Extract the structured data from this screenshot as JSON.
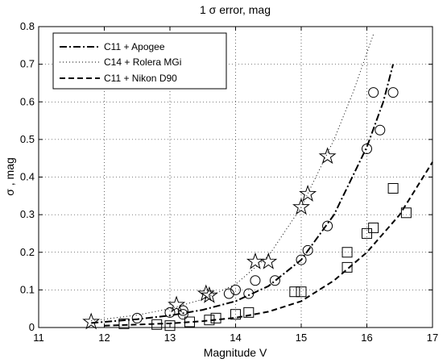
{
  "chart_data": {
    "type": "scatter",
    "title": "1 σ error,  mag",
    "xlabel": "Magnitude  V",
    "ylabel": "σ ,  mag",
    "xlim": [
      11,
      17
    ],
    "ylim": [
      0,
      0.8
    ],
    "xticks": [
      "11",
      "12",
      "13",
      "14",
      "15",
      "16",
      "17"
    ],
    "yticks": [
      "0",
      "0.1",
      "0.2",
      "0.3",
      "0.4",
      "0.5",
      "0.6",
      "0.7",
      "0.8"
    ],
    "grid": true,
    "legend_position": "top-left",
    "curves": [
      {
        "name": "C11 + Apogee",
        "style": "dashdot",
        "x": [
          11.8,
          12.0,
          12.5,
          13.0,
          13.5,
          14.0,
          14.5,
          15.0,
          15.5,
          16.0,
          16.25,
          16.4
        ],
        "y": [
          0.012,
          0.015,
          0.022,
          0.032,
          0.047,
          0.07,
          0.11,
          0.18,
          0.3,
          0.48,
          0.6,
          0.7
        ]
      },
      {
        "name": "C14 + Rolera  MGi",
        "style": "dotted",
        "x": [
          11.8,
          12.0,
          12.5,
          13.0,
          13.5,
          14.0,
          14.5,
          15.0,
          15.5,
          15.8,
          16.0,
          16.1
        ],
        "y": [
          0.018,
          0.022,
          0.033,
          0.05,
          0.075,
          0.115,
          0.19,
          0.32,
          0.5,
          0.63,
          0.73,
          0.78
        ]
      },
      {
        "name": "C11 + Nikon D90",
        "style": "dashed",
        "x": [
          12.0,
          12.5,
          13.0,
          13.5,
          14.0,
          14.5,
          15.0,
          15.5,
          16.0,
          16.5,
          17.0
        ],
        "y": [
          0.005,
          0.008,
          0.011,
          0.017,
          0.026,
          0.042,
          0.07,
          0.125,
          0.2,
          0.3,
          0.44
        ]
      }
    ],
    "markers": [
      {
        "series": "C11 + Apogee",
        "symbol": "circle",
        "x": [
          12.5,
          13.0,
          13.2,
          13.2,
          13.9,
          14.0,
          14.2,
          14.3,
          14.6,
          15.0,
          15.1,
          15.4,
          16.0,
          16.1,
          16.2,
          16.4
        ],
        "y": [
          0.025,
          0.04,
          0.045,
          0.035,
          0.09,
          0.1,
          0.09,
          0.125,
          0.125,
          0.18,
          0.205,
          0.27,
          0.475,
          0.625,
          0.525,
          0.625
        ]
      },
      {
        "series": "C14 + Rolera  MGi",
        "symbol": "star",
        "x": [
          11.8,
          13.1,
          13.55,
          13.6,
          14.3,
          14.5,
          15.0,
          15.1,
          15.4
        ],
        "y": [
          0.015,
          0.06,
          0.09,
          0.085,
          0.175,
          0.175,
          0.32,
          0.355,
          0.455
        ]
      },
      {
        "series": "C11 + Nikon D90",
        "symbol": "square",
        "x": [
          12.3,
          12.8,
          13.0,
          13.3,
          13.6,
          13.7,
          14.0,
          14.2,
          14.9,
          15.0,
          15.7,
          15.7,
          16.0,
          16.1,
          16.4,
          16.6
        ],
        "y": [
          0.01,
          0.008,
          0.005,
          0.015,
          0.02,
          0.025,
          0.035,
          0.04,
          0.095,
          0.095,
          0.16,
          0.2,
          0.25,
          0.265,
          0.37,
          0.305
        ]
      }
    ]
  }
}
